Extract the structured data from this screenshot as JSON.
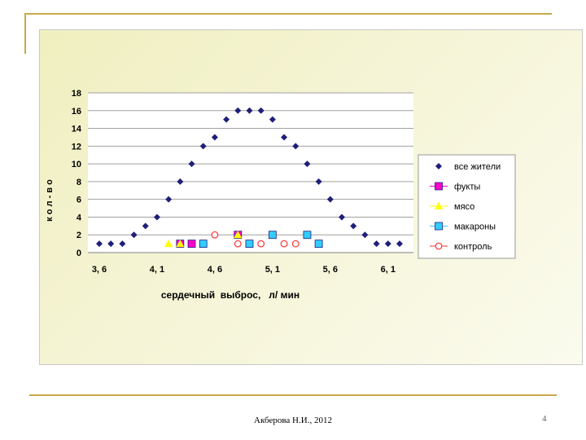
{
  "chart_data": {
    "type": "scatter",
    "title": "",
    "xlabel": "сердечный  выброс,   л/ мин",
    "ylabel": "к о л - в о",
    "x_ticks": [
      "3, 6",
      "4, 1",
      "4, 6",
      "5, 1",
      "5, 6",
      "6, 1"
    ],
    "y_ticks": [
      "0",
      "2",
      "4",
      "6",
      "8",
      "10",
      "12",
      "14",
      "16",
      "18"
    ],
    "xlim": [
      3.6,
      6.32
    ],
    "ylim": [
      0,
      18
    ],
    "grid": "horizontal",
    "legend_position": "right",
    "series": [
      {
        "name": "все  жители",
        "marker": "diamond",
        "color": "#1f1f7a",
        "x": [
          3.6,
          3.7,
          3.8,
          3.9,
          4.0,
          4.1,
          4.2,
          4.3,
          4.4,
          4.5,
          4.6,
          4.7,
          4.8,
          4.9,
          5.0,
          5.1,
          5.2,
          5.3,
          5.4,
          5.5,
          5.6,
          5.7,
          5.8,
          5.9,
          6.0,
          6.1,
          6.2
        ],
        "y": [
          1,
          1,
          1,
          2,
          3,
          4,
          6,
          8,
          10,
          12,
          13,
          15,
          16,
          16,
          16,
          15,
          13,
          12,
          10,
          8,
          6,
          4,
          3,
          2,
          1,
          1,
          1
        ]
      },
      {
        "name": "фукты",
        "marker": "square",
        "color": "#ff00cc",
        "x": [
          4.3,
          4.4,
          4.8
        ],
        "y": [
          1,
          1,
          2
        ]
      },
      {
        "name": "мясо",
        "marker": "triangle",
        "color": "#ffff00",
        "x": [
          4.2,
          4.3,
          4.8
        ],
        "y": [
          1,
          1,
          2
        ]
      },
      {
        "name": "макароны",
        "marker": "square",
        "color": "#33ccff",
        "x": [
          4.5,
          4.9,
          5.1,
          5.4,
          5.5
        ],
        "y": [
          1,
          1,
          2,
          2,
          1
        ]
      },
      {
        "name": "контроль",
        "marker": "circle",
        "color": "#ff3333",
        "x": [
          4.6,
          4.8,
          5.0,
          5.2,
          5.3
        ],
        "y": [
          2,
          1,
          1,
          1,
          1
        ]
      }
    ]
  },
  "footer": {
    "author": "Акберова Н.И., 2012",
    "page": "4"
  },
  "colors": {
    "accent": "#c9a94a",
    "panel": "#f3f2cc"
  }
}
